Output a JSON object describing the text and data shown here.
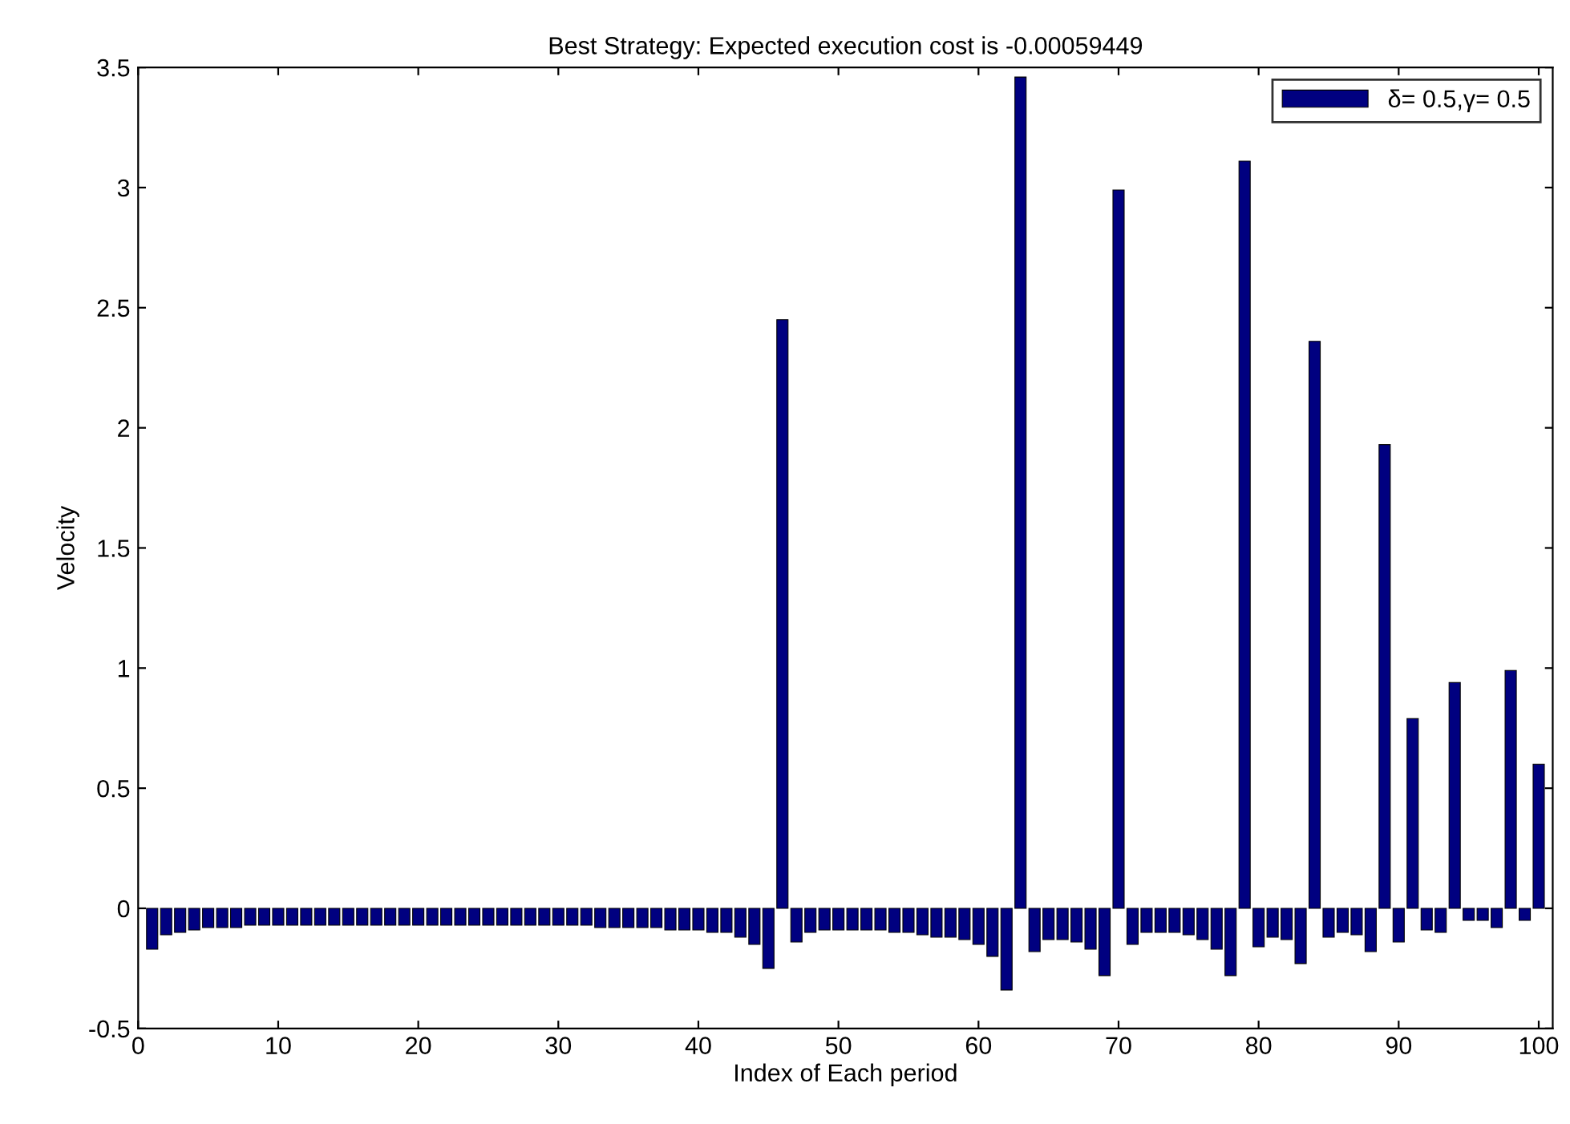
{
  "chart_data": {
    "type": "bar",
    "title": "Best Strategy: Expected execution cost is -0.00059449",
    "xlabel": "Index of Each period",
    "ylabel": "Velocity",
    "x": [
      1,
      2,
      3,
      4,
      5,
      6,
      7,
      8,
      9,
      10,
      11,
      12,
      13,
      14,
      15,
      16,
      17,
      18,
      19,
      20,
      21,
      22,
      23,
      24,
      25,
      26,
      27,
      28,
      29,
      30,
      31,
      32,
      33,
      34,
      35,
      36,
      37,
      38,
      39,
      40,
      41,
      42,
      43,
      44,
      45,
      46,
      47,
      48,
      49,
      50,
      51,
      52,
      53,
      54,
      55,
      56,
      57,
      58,
      59,
      60,
      61,
      62,
      63,
      64,
      65,
      66,
      67,
      68,
      69,
      70,
      71,
      72,
      73,
      74,
      75,
      76,
      77,
      78,
      79,
      80,
      81,
      82,
      83,
      84,
      85,
      86,
      87,
      88,
      89,
      90,
      91,
      92,
      93,
      94,
      95,
      96,
      97,
      98,
      99,
      100
    ],
    "series": [
      {
        "name": "δ= 0.5,γ= 0.5",
        "color": "#000080",
        "values": [
          -0.17,
          -0.11,
          -0.1,
          -0.09,
          -0.08,
          -0.08,
          -0.08,
          -0.07,
          -0.07,
          -0.07,
          -0.07,
          -0.07,
          -0.07,
          -0.07,
          -0.07,
          -0.07,
          -0.07,
          -0.07,
          -0.07,
          -0.07,
          -0.07,
          -0.07,
          -0.07,
          -0.07,
          -0.07,
          -0.07,
          -0.07,
          -0.07,
          -0.07,
          -0.07,
          -0.07,
          -0.07,
          -0.08,
          -0.08,
          -0.08,
          -0.08,
          -0.08,
          -0.09,
          -0.09,
          -0.09,
          -0.1,
          -0.1,
          -0.12,
          -0.15,
          -0.25,
          2.45,
          -0.14,
          -0.1,
          -0.09,
          -0.09,
          -0.09,
          -0.09,
          -0.09,
          -0.1,
          -0.1,
          -0.11,
          -0.12,
          -0.12,
          -0.13,
          -0.15,
          -0.2,
          -0.34,
          3.46,
          -0.18,
          -0.13,
          -0.13,
          -0.14,
          -0.17,
          -0.28,
          2.99,
          -0.15,
          -0.1,
          -0.1,
          -0.1,
          -0.11,
          -0.13,
          -0.17,
          -0.28,
          3.11,
          -0.16,
          -0.12,
          -0.13,
          -0.23,
          2.36,
          -0.12,
          -0.1,
          -0.11,
          -0.18,
          1.93,
          -0.14,
          0.79,
          -0.09,
          -0.1,
          0.94,
          -0.05,
          -0.05,
          -0.08,
          0.99,
          -0.05,
          0.6
        ]
      }
    ],
    "xlim": [
      0,
      101
    ],
    "ylim": [
      -0.5,
      3.5
    ],
    "xticks": [
      0,
      10,
      20,
      30,
      40,
      50,
      60,
      70,
      80,
      90,
      100
    ],
    "yticks": [
      {
        "value": -0.5,
        "label": "-0.5"
      },
      0,
      0.5,
      1,
      1.5,
      2,
      2.5,
      3,
      3.5
    ],
    "legend": "top right",
    "grid": false
  }
}
